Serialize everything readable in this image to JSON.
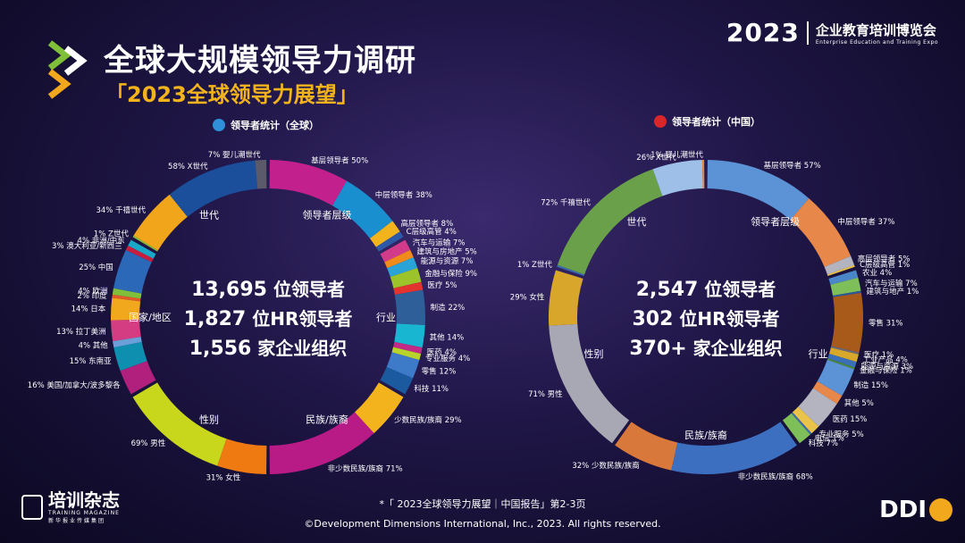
{
  "header": {
    "title": "全球大规模领导力调研",
    "subtitle": "「2023全球领导力展望」",
    "expo_year": "2023",
    "expo_cn": "企业教育培训博览会",
    "expo_en": "Enterprise Education and Training Expo"
  },
  "legend_left": "领导者统计（全球）",
  "legend_right": "领导者统计（中国）",
  "stats_left": {
    "line1_num": "13,695",
    "line1_txt": "位领导者",
    "line2_num": "1,827",
    "line2_txt": "位HR领导者",
    "line3_num": "1,556",
    "line3_txt": "家企业组织"
  },
  "stats_right": {
    "line1_num": "2,547",
    "line1_txt": "位领导者",
    "line2_num": "302",
    "line2_txt": "位HR领导者",
    "line3_num": "370+",
    "line3_txt": "家企业组织"
  },
  "footer_note": "*「 2023全球领导力展望｜中国报告」第2-3页",
  "copyright": "©Development Dimensions International, Inc., 2023. All rights reserved.",
  "magazine": {
    "name": "培训杂志",
    "en": "TRAINING MAGAZINE",
    "sub": "新华报业传媒集团"
  },
  "ddi": "DDI",
  "colors": {
    "level": "#c2208c",
    "industry": "#3a6ea5",
    "ethnicity": "#b81a86",
    "gender": "#c8d61c",
    "region": "#1b4f9c",
    "generation": "#f0a51a",
    "cn_level": "#5c92d6",
    "cn_generation": "#6aa04a"
  },
  "chart_data": [
    {
      "type": "donut",
      "name": "全球",
      "groups": [
        {
          "label": "领导者层级",
          "segments": [
            {
              "label": "基层领导者 50%",
              "value": 50,
              "color": "#c2208c"
            },
            {
              "label": "中层领导者 38%",
              "value": 38,
              "color": "#1a8fd0"
            },
            {
              "label": "高层领导者 8%",
              "value": 8,
              "color": "#f2b31d"
            },
            {
              "label": "C层级高管 4%",
              "value": 4,
              "color": "#2d5aa8"
            }
          ]
        },
        {
          "label": "行业",
          "segments": [
            {
              "label": "汽车与运输 7%",
              "value": 7,
              "color": "#d23a8a"
            },
            {
              "label": "建筑与房地产 5%",
              "value": 5,
              "color": "#f08a1a"
            },
            {
              "label": "能源与资源 7%",
              "value": 7,
              "color": "#2aa4d8"
            },
            {
              "label": "金融与保险 9%",
              "value": 9,
              "color": "#9cc42a"
            },
            {
              "label": "医疗 5%",
              "value": 5,
              "color": "#e2332f"
            },
            {
              "label": "制造 22%",
              "value": 22,
              "color": "#2f5f99"
            },
            {
              "label": "其他 14%",
              "value": 14,
              "color": "#19b6d1"
            },
            {
              "label": "医药 4%",
              "value": 4,
              "color": "#c22a86"
            },
            {
              "label": "专业服务 4%",
              "value": 4,
              "color": "#b8d42a"
            },
            {
              "label": "零售 12%",
              "value": 12,
              "color": "#3d7ac8"
            },
            {
              "label": "科技 11%",
              "value": 11,
              "color": "#1c5aa0"
            }
          ]
        },
        {
          "label": "民族/族裔",
          "segments": [
            {
              "label": "少数民族/族裔 29%",
              "value": 29,
              "color": "#f2b31d"
            },
            {
              "label": "非少数民族/族裔 71%",
              "value": 71,
              "color": "#b81a86"
            }
          ]
        },
        {
          "label": "性别",
          "segments": [
            {
              "label": "31% 女性",
              "value": 31,
              "color": "#f07a12"
            },
            {
              "label": "69% 男性",
              "value": 69,
              "color": "#c8d61c"
            }
          ]
        },
        {
          "label": "国家/地区",
          "segments": [
            {
              "label": "16% 美国/加拿大/波多黎各",
              "value": 16,
              "color": "#b0207c"
            },
            {
              "label": "15% 东南亚",
              "value": 15,
              "color": "#0e8fb0"
            },
            {
              "label": "4% 其他",
              "value": 4,
              "color": "#6a9fd8"
            },
            {
              "label": "13% 拉丁美洲",
              "value": 13,
              "color": "#d43d82"
            },
            {
              "label": "14% 日本",
              "value": 14,
              "color": "#f2a81d"
            },
            {
              "label": "2% 印度",
              "value": 2,
              "color": "#e25a2a"
            },
            {
              "label": "4% 欧洲",
              "value": 4,
              "color": "#7fbf3a"
            },
            {
              "label": "25% 中国",
              "value": 25,
              "color": "#2b68b8"
            },
            {
              "label": "3% 澳大利亚/新西兰",
              "value": 3,
              "color": "#c61e3c"
            },
            {
              "label": "4% 非洲/中东",
              "value": 4,
              "color": "#1aa8c9"
            }
          ]
        },
        {
          "label": "世代",
          "segments": [
            {
              "label": "1% Z世代",
              "value": 1,
              "color": "#7fbf3a"
            },
            {
              "label": "34% 千禧世代",
              "value": 34,
              "color": "#f0a51a"
            },
            {
              "label": "58% X世代",
              "value": 58,
              "color": "#1b4f9c"
            },
            {
              "label": "7% 婴儿潮世代",
              "value": 7,
              "color": "#5a5a6a"
            }
          ]
        }
      ]
    },
    {
      "type": "donut",
      "name": "中国",
      "groups": [
        {
          "label": "领导者层级",
          "segments": [
            {
              "label": "基层领导者 57%",
              "value": 57,
              "color": "#5c92d6"
            },
            {
              "label": "中层领导者 37%",
              "value": 37,
              "color": "#e8874a"
            },
            {
              "label": "高层领导者 5%",
              "value": 5,
              "color": "#b4b4c0"
            },
            {
              "label": "C层级高管 1%",
              "value": 1,
              "color": "#e9c34a"
            }
          ]
        },
        {
          "label": "行业",
          "segments": [
            {
              "label": "农业 4%",
              "value": 4,
              "color": "#4a86c8"
            },
            {
              "label": "汽车与运输 7%",
              "value": 7,
              "color": "#7fbf5a"
            },
            {
              "label": "建筑与地产 1%",
              "value": 1,
              "color": "#2a5a9a"
            },
            {
              "label": "零售 31%",
              "value": 31,
              "color": "#a85a1a"
            },
            {
              "label": "医疗 1%",
              "value": 1,
              "color": "#6a6a7a"
            },
            {
              "label": "工业产品 4%",
              "value": 4,
              "color": "#d8a82a"
            },
            {
              "label": "能源与资源 3%",
              "value": 3,
              "color": "#3a70b8"
            },
            {
              "label": "金融与保险 1%",
              "value": 1,
              "color": "#4a8a3a"
            },
            {
              "label": "制造 15%",
              "value": 15,
              "color": "#5c92d6"
            },
            {
              "label": "其他 5%",
              "value": 5,
              "color": "#e8874a"
            },
            {
              "label": "医药 15%",
              "value": 15,
              "color": "#b4b4c0"
            },
            {
              "label": "专业服务 5%",
              "value": 5,
              "color": "#e9c34a"
            },
            {
              "label": "电信 1%",
              "value": 1,
              "color": "#3a6ab0"
            },
            {
              "label": "科技 7%",
              "value": 7,
              "color": "#7fbf5a"
            }
          ]
        },
        {
          "label": "民族/族裔",
          "segments": [
            {
              "label": "非少数民族/族裔 68%",
              "value": 68,
              "color": "#3d6fc0"
            },
            {
              "label": "32% 少数民族/族裔",
              "value": 32,
              "color": "#d8783a"
            }
          ]
        },
        {
          "label": "性别",
          "segments": [
            {
              "label": "71% 男性",
              "value": 71,
              "color": "#a8a8b4"
            },
            {
              "label": "29% 女性",
              "value": 29,
              "color": "#d8a62a"
            }
          ]
        },
        {
          "label": "世代",
          "segments": [
            {
              "label": "1% Z世代",
              "value": 1,
              "color": "#3a6ab0"
            },
            {
              "label": "72% 千禧世代",
              "value": 72,
              "color": "#6aa04a"
            },
            {
              "label": "26% X世代",
              "value": 26,
              "color": "#9ec0e8"
            },
            {
              "label": "1% 婴儿潮世代",
              "value": 1,
              "color": "#e8874a"
            }
          ]
        }
      ]
    }
  ]
}
